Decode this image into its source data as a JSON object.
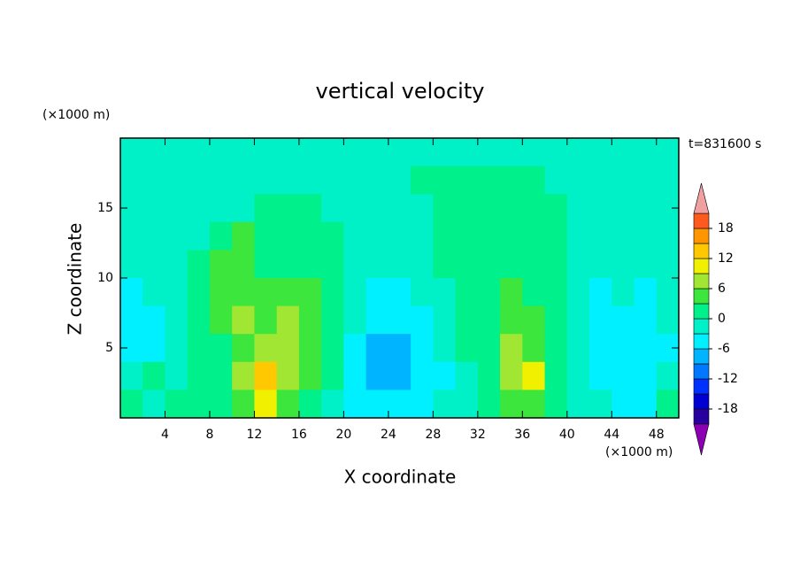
{
  "chart_data": {
    "type": "contour",
    "title": "vertical velocity",
    "x_label": "X coordinate",
    "y_label": "Z coordinate",
    "x_unit": "(×1000 m)",
    "y_unit": "(×1000 m)",
    "annotation": "t=831600 s",
    "xlim": [
      0,
      50
    ],
    "ylim": [
      0,
      20
    ],
    "xticks": [
      4,
      8,
      12,
      16,
      20,
      24,
      28,
      32,
      36,
      40,
      44,
      48
    ],
    "yticks": [
      5,
      10,
      15
    ],
    "x": [
      1,
      3,
      5,
      7,
      9,
      11,
      13,
      15,
      17,
      19,
      21,
      23,
      25,
      27,
      29,
      31,
      33,
      35,
      37,
      39,
      41,
      43,
      45,
      47,
      49
    ],
    "y": [
      19,
      17,
      15,
      13,
      11,
      9,
      7,
      5,
      3,
      1
    ],
    "values": [
      [
        -1.5,
        -1.5,
        -1.5,
        -1.5,
        -1.5,
        -1.5,
        -1.5,
        -1.5,
        -1.5,
        -1.5,
        -1.5,
        -1.5,
        -1.5,
        -1.5,
        -1.5,
        -1.5,
        -1.5,
        -1.5,
        -1.5,
        -1.5,
        -1.5,
        -1.5,
        -1.5,
        -1.5,
        -1.5
      ],
      [
        -1.5,
        -1.5,
        -1.5,
        -1.5,
        -1.5,
        -1.5,
        -1.5,
        -1.5,
        -1.5,
        -1.5,
        -1.5,
        -1.5,
        -1.5,
        1.5,
        1.5,
        1.5,
        1.5,
        1.5,
        1.5,
        -1.5,
        -1.5,
        -1.5,
        -1.5,
        -1.5,
        -1.5
      ],
      [
        -1.5,
        -1.5,
        -1.5,
        -1.5,
        -1.5,
        -1.5,
        1.5,
        1.5,
        1.5,
        -1.5,
        -1.5,
        -1.5,
        -1.5,
        -1.5,
        1.5,
        1.5,
        1.5,
        1.5,
        1.5,
        1.5,
        -1.5,
        -1.5,
        -1.5,
        -1.5,
        -1.5
      ],
      [
        -1.5,
        -1.5,
        -1.5,
        -1.5,
        1.5,
        4.5,
        1.5,
        1.5,
        1.5,
        1.5,
        -1.5,
        -1.5,
        -1.5,
        -1.5,
        1.5,
        1.5,
        1.5,
        1.5,
        1.5,
        1.5,
        -1.5,
        -1.5,
        -1.5,
        -1.5,
        -1.5
      ],
      [
        -1.5,
        -1.5,
        -1.5,
        1.5,
        4.5,
        4.5,
        1.5,
        1.5,
        1.5,
        1.5,
        -1.5,
        -1.5,
        -1.5,
        -1.5,
        1.5,
        1.5,
        1.5,
        1.5,
        1.5,
        1.5,
        -1.5,
        -1.5,
        -1.5,
        -1.5,
        -1.5
      ],
      [
        -4.5,
        -1.5,
        -1.5,
        1.5,
        4.5,
        4.5,
        4.5,
        4.5,
        4.5,
        1.5,
        -1.5,
        -4.5,
        -4.5,
        -1.5,
        -1.5,
        1.5,
        1.5,
        4.5,
        1.5,
        1.5,
        -1.5,
        -4.5,
        -1.5,
        -4.5,
        -1.5
      ],
      [
        -4.5,
        -4.5,
        -1.5,
        1.5,
        4.5,
        7.5,
        4.5,
        7.5,
        4.5,
        1.5,
        -1.5,
        -4.5,
        -4.5,
        -4.5,
        -1.5,
        1.5,
        1.5,
        4.5,
        4.5,
        1.5,
        -1.5,
        -4.5,
        -4.5,
        -4.5,
        -1.5
      ],
      [
        -4.5,
        -4.5,
        -1.5,
        1.5,
        1.5,
        4.5,
        7.5,
        7.5,
        4.5,
        1.5,
        -4.5,
        -7.5,
        -7.5,
        -4.5,
        -1.5,
        1.5,
        1.5,
        7.5,
        4.5,
        1.5,
        -1.5,
        -4.5,
        -4.5,
        -4.5,
        -4.5
      ],
      [
        -1.5,
        1.5,
        -1.5,
        1.5,
        1.5,
        7.5,
        13.5,
        7.5,
        4.5,
        1.5,
        -4.5,
        -7.5,
        -7.5,
        -4.5,
        -4.5,
        -1.5,
        1.5,
        7.5,
        10.5,
        1.5,
        -1.5,
        -4.5,
        -4.5,
        -4.5,
        -1.5
      ],
      [
        1.5,
        -1.5,
        1.5,
        1.5,
        1.5,
        4.5,
        10.5,
        4.5,
        1.5,
        -1.5,
        -4.5,
        -4.5,
        -4.5,
        -4.5,
        -1.5,
        -1.5,
        1.5,
        4.5,
        4.5,
        1.5,
        -1.5,
        -1.5,
        -4.5,
        -4.5,
        1.5
      ]
    ],
    "colorbar": {
      "ticks": [
        18,
        12,
        6,
        0,
        -6,
        -12,
        -18
      ],
      "levels": [
        -21,
        -18,
        -15,
        -12,
        -9,
        -6,
        -3,
        0,
        3,
        6,
        9,
        12,
        15,
        18,
        21
      ],
      "colors": [
        "#2800a0",
        "#0000d2",
        "#0032ff",
        "#0078ff",
        "#00b4ff",
        "#00f0ff",
        "#00f0c8",
        "#00f08c",
        "#3ce63c",
        "#a0e632",
        "#f0f000",
        "#ffc800",
        "#ff9600",
        "#ff5a1e",
        "#e6281e"
      ],
      "under_color": "#8c00b4",
      "over_color": "#f0a0a0"
    }
  }
}
